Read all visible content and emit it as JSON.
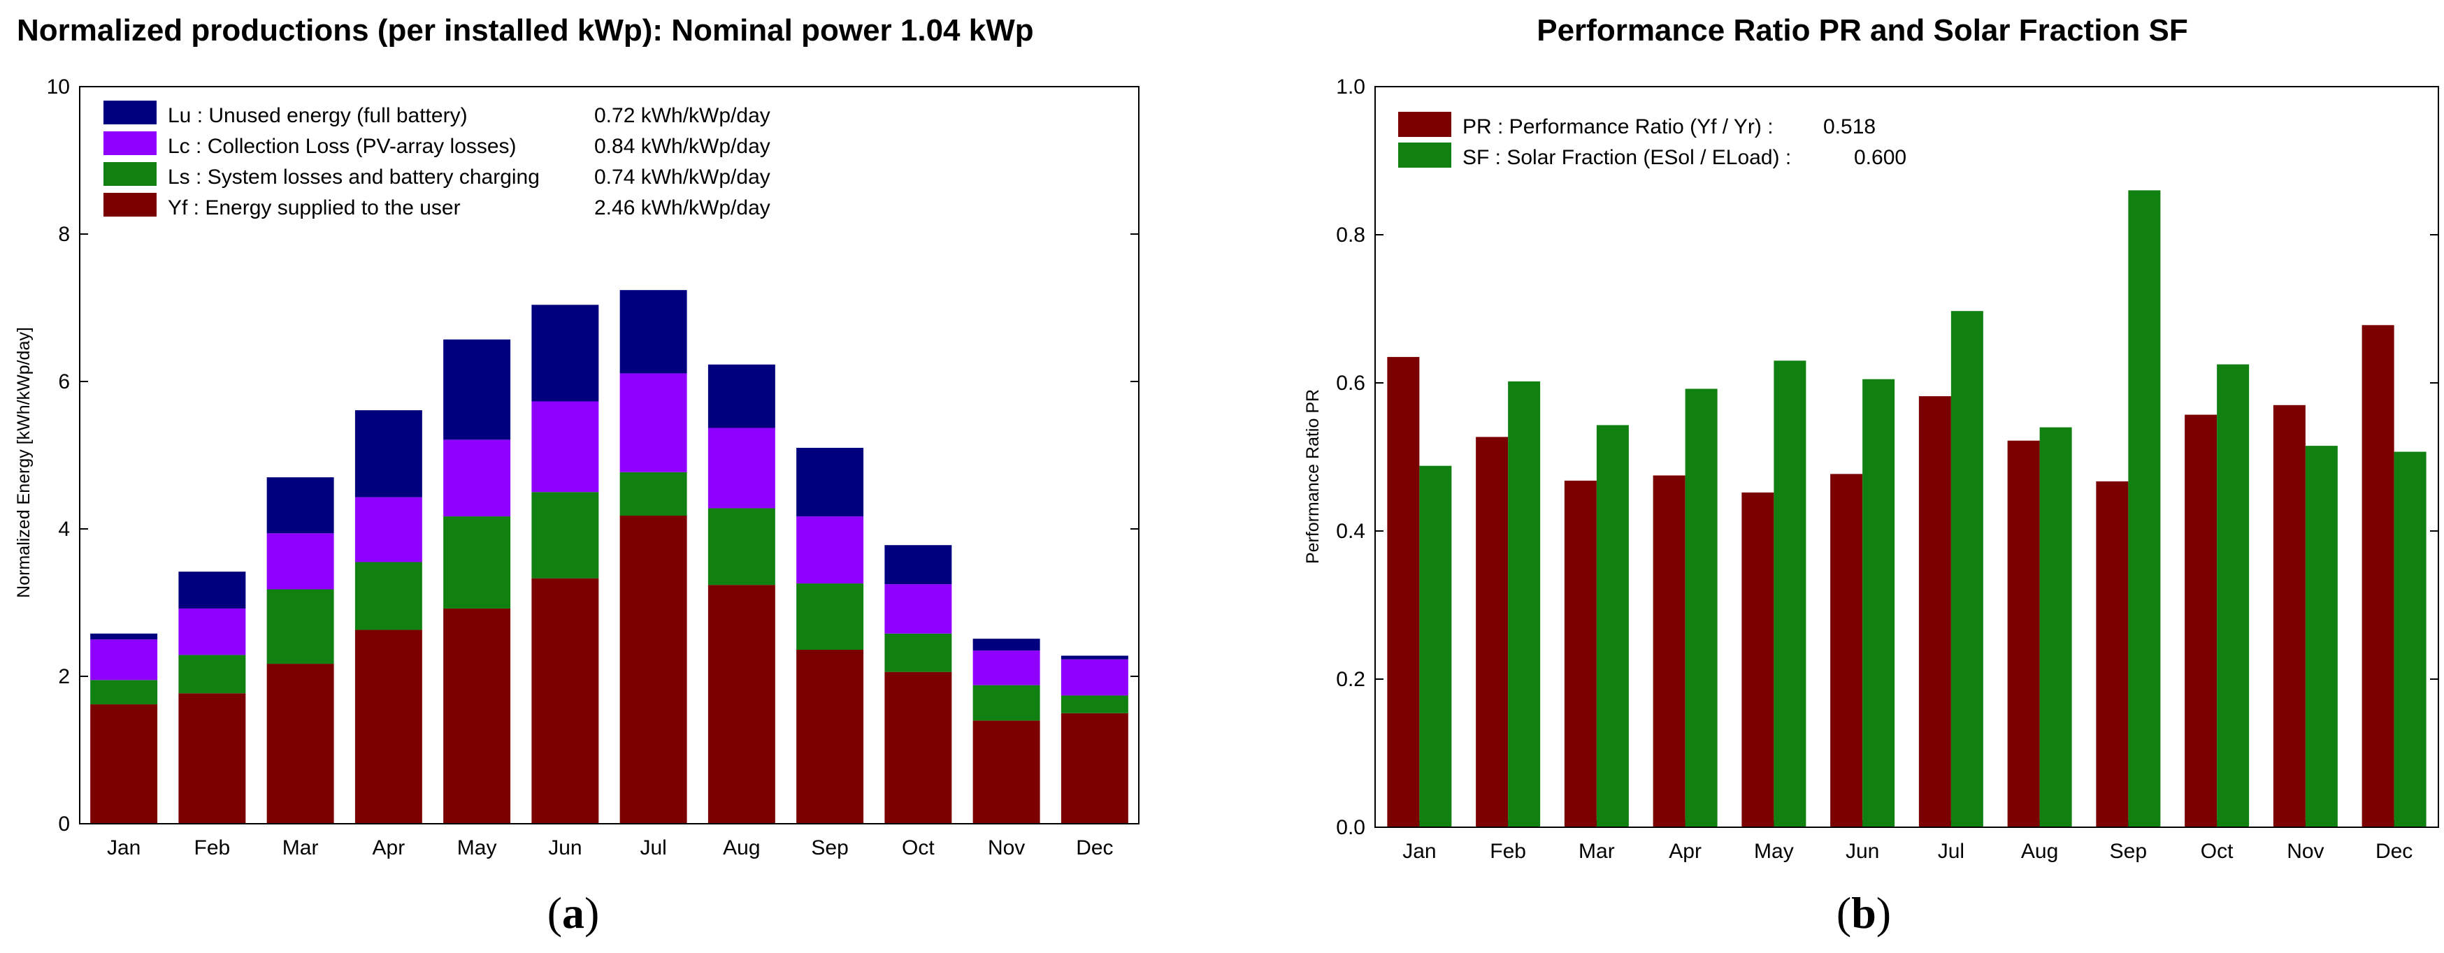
{
  "colors": {
    "yf": "#7b0000",
    "ls": "#108010",
    "lc": "#8f00ff",
    "lu": "#00007f",
    "pr": "#7b0000",
    "sf": "#108010"
  },
  "chart_data": [
    {
      "type": "bar",
      "stacked": true,
      "panel_label": "a",
      "title": "Normalized productions (per installed kWp):  Nominal power 1.04 kWp",
      "xlabel": "",
      "ylabel": "Normalized Energy [kWh/kWp/day]",
      "ylim": [
        0,
        10
      ],
      "yticks": [
        "0",
        "2",
        "4",
        "6",
        "8",
        "10"
      ],
      "categories": [
        "Jan",
        "Feb",
        "Mar",
        "Apr",
        "May",
        "Jun",
        "Jul",
        "Aug",
        "Sep",
        "Oct",
        "Nov",
        "Dec"
      ],
      "series": [
        {
          "key": "yf",
          "name": "Yf : Energy supplied to the user",
          "value_text": "2.46 kWh/kWp/day",
          "values": [
            1.62,
            1.77,
            2.17,
            2.63,
            2.92,
            3.33,
            4.18,
            3.24,
            2.36,
            2.06,
            1.4,
            1.5
          ]
        },
        {
          "key": "ls",
          "name": "Ls : System losses and battery charging",
          "value_text": "0.74 kWh/kWp/day",
          "values": [
            0.33,
            0.52,
            1.01,
            0.92,
            1.25,
            1.17,
            0.59,
            1.04,
            0.9,
            0.52,
            0.48,
            0.24
          ]
        },
        {
          "key": "lc",
          "name": "Lc : Collection Loss (PV-array losses)",
          "value_text": "0.84 kWh/kWp/day",
          "values": [
            0.55,
            0.63,
            0.76,
            0.88,
            1.04,
            1.23,
            1.34,
            1.09,
            0.91,
            0.67,
            0.47,
            0.49
          ]
        },
        {
          "key": "lu",
          "name": "Lu : Unused energy (full battery)",
          "value_text": "0.72 kWh/kWp/day",
          "values": [
            0.08,
            0.5,
            0.76,
            1.18,
            1.36,
            1.31,
            1.13,
            0.86,
            0.93,
            0.53,
            0.16,
            0.05
          ]
        }
      ]
    },
    {
      "type": "bar",
      "stacked": false,
      "panel_label": "b",
      "title": "Performance Ratio PR  and Solar Fraction SF",
      "xlabel": "",
      "ylabel": "Performance Ratio PR",
      "ylim": [
        0,
        1.0
      ],
      "yticks": [
        "0.0",
        "0.2",
        "0.4",
        "0.6",
        "0.8",
        "1.0"
      ],
      "categories": [
        "Jan",
        "Feb",
        "Mar",
        "Apr",
        "May",
        "Jun",
        "Jul",
        "Aug",
        "Sep",
        "Oct",
        "Nov",
        "Dec"
      ],
      "series": [
        {
          "key": "pr",
          "name": "PR : Performance Ratio (Yf / Yr) :",
          "value_text": "0.518",
          "values": [
            0.635,
            0.527,
            0.468,
            0.475,
            0.452,
            0.477,
            0.582,
            0.522,
            0.467,
            0.557,
            0.57,
            0.678
          ]
        },
        {
          "key": "sf",
          "name": "SF : Solar Fraction (ESol / ELoad) :",
          "value_text": "0.600",
          "values": [
            0.488,
            0.602,
            0.543,
            0.592,
            0.63,
            0.605,
            0.697,
            0.54,
            0.86,
            0.625,
            0.515,
            0.507
          ]
        }
      ]
    }
  ]
}
